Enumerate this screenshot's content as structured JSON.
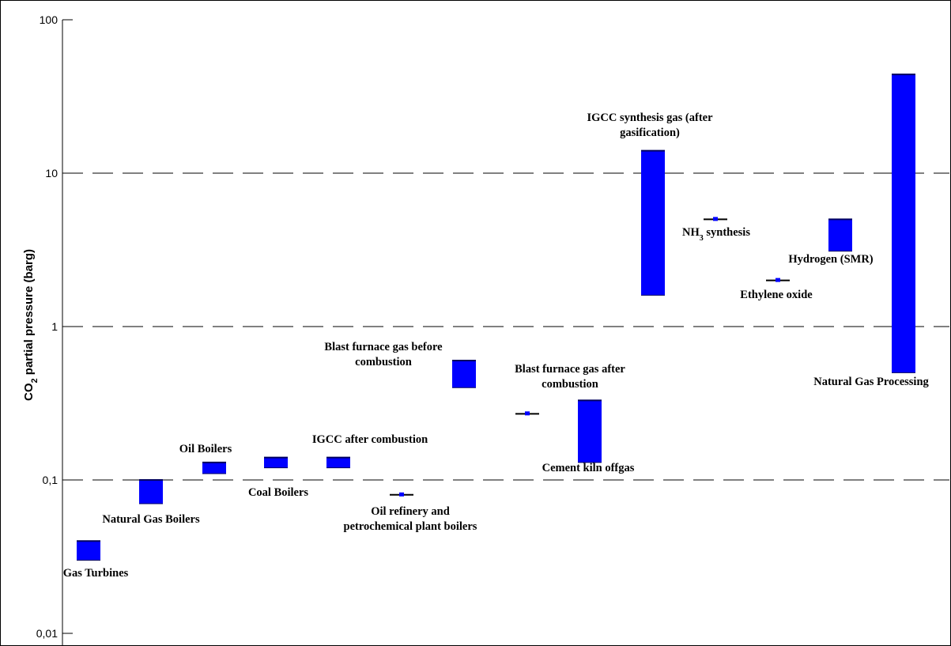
{
  "chart_data": {
    "type": "range-bar",
    "ylabel": "CO2 partial pressure (barg)",
    "ylabel_parts": {
      "pre": "CO",
      "sub": "2",
      "post": " partial pressure (barg)"
    },
    "yscale": "log",
    "ylim": [
      0.01,
      100
    ],
    "yticks": [
      {
        "value": 0.01,
        "label": "0,01"
      },
      {
        "value": 0.1,
        "label": "0,1"
      },
      {
        "value": 1,
        "label": "1"
      },
      {
        "value": 10,
        "label": "10"
      },
      {
        "value": 100,
        "label": "100"
      }
    ],
    "gridlines": [
      0.1,
      1,
      10
    ],
    "bar_color": "#0000ff",
    "series": [
      {
        "name": "Gas Turbines",
        "label_lines": [
          "Gas Turbines"
        ],
        "low": 0.03,
        "high": 0.04
      },
      {
        "name": "Natural Gas Boilers",
        "label_lines": [
          "Natural Gas Boilers"
        ],
        "low": 0.07,
        "high": 0.1
      },
      {
        "name": "Oil Boilers",
        "label_lines": [
          "Oil Boilers"
        ],
        "low": 0.11,
        "high": 0.13
      },
      {
        "name": "Coal Boilers",
        "label_lines": [
          "Coal Boilers"
        ],
        "low": 0.12,
        "high": 0.14
      },
      {
        "name": "IGCC after combustion",
        "label_lines": [
          "IGCC after combustion"
        ],
        "low": 0.12,
        "high": 0.14
      },
      {
        "name": "Oil refinery and petrochemical plant boilers",
        "label_lines": [
          "Oil refinery and",
          "petrochemical plant boilers"
        ],
        "low": 0.08,
        "high": 0.08
      },
      {
        "name": "Blast furnace gas before combustion",
        "label_lines": [
          "Blast furnace gas before",
          "combustion"
        ],
        "low": 0.4,
        "high": 0.6
      },
      {
        "name": "Blast furnace gas after combustion",
        "label_lines": [
          "Blast furnace gas after",
          "combustion"
        ],
        "low": 0.27,
        "high": 0.27
      },
      {
        "name": "Cement kiln offgas",
        "label_lines": [
          "Cement kiln offgas"
        ],
        "low": 0.13,
        "high": 0.33
      },
      {
        "name": "IGCC synthesis gas (after gasification)",
        "label_lines": [
          "IGCC synthesis gas (after",
          "gasification)"
        ],
        "low": 1.6,
        "high": 14
      },
      {
        "name": "NH3 synthesis",
        "label_lines": [
          "NH3 synthesis"
        ],
        "label_parts": {
          "pre": "NH",
          "sub": "3",
          "post": " synthesis"
        },
        "low": 5,
        "high": 5
      },
      {
        "name": "Ethylene oxide",
        "label_lines": [
          "Ethylene oxide"
        ],
        "low": 2,
        "high": 2
      },
      {
        "name": "Hydrogen (SMR)",
        "label_lines": [
          "Hydrogen (SMR)"
        ],
        "low": 3.1,
        "high": 5
      },
      {
        "name": "Natural Gas Processing",
        "label_lines": [
          "Natural Gas Processing"
        ],
        "low": 0.5,
        "high": 44
      }
    ]
  }
}
